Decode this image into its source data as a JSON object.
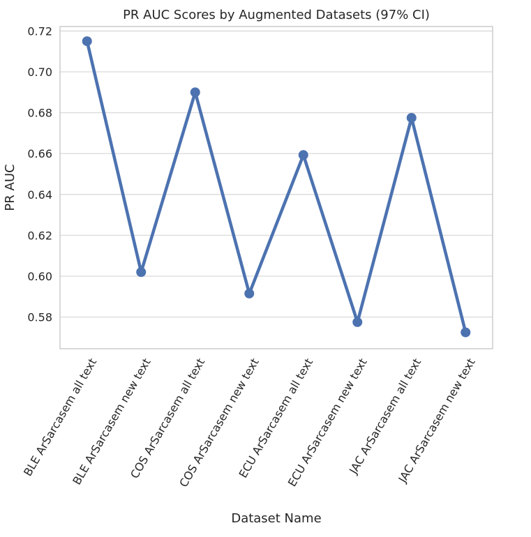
{
  "chart_data": {
    "type": "line",
    "title": "PR AUC Scores by Augmented Datasets (97% CI)",
    "xlabel": "Dataset Name",
    "ylabel": "PR AUC",
    "categories": [
      "BLE ArSarcasem  all text",
      "BLE ArSarcasem  new text",
      "COS ArSarcasem  all text",
      "COS ArSarcasem  new text",
      "ECU ArSarcasem  all text",
      "ECU ArSarcasem  new text",
      "JAC ArSarcasem  all text",
      "JAC ArSarcasem  new text"
    ],
    "values": [
      0.715,
      0.602,
      0.69,
      0.5915,
      0.6593,
      0.5775,
      0.6775,
      0.5725
    ],
    "yticks": [
      "0.58",
      "0.60",
      "0.62",
      "0.64",
      "0.66",
      "0.68",
      "0.70",
      "0.72"
    ],
    "ylim": [
      0.5645,
      0.7222
    ],
    "grid": true,
    "color": "#4c72b0"
  }
}
